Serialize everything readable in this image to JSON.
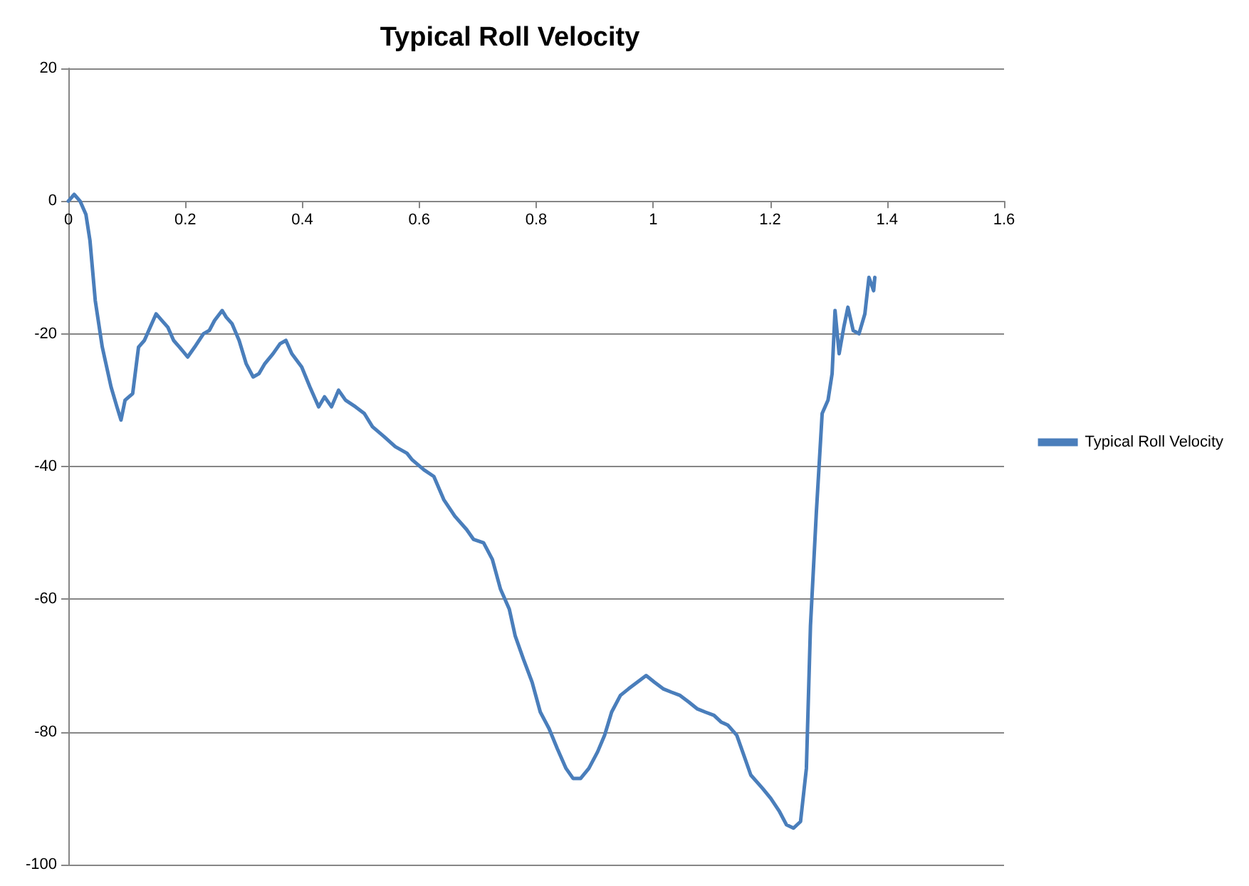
{
  "chart_data": {
    "type": "line",
    "title": "Typical Roll Velocity",
    "xlim": [
      0,
      1.6
    ],
    "xticks": [
      0,
      0.2,
      0.4,
      0.6,
      0.8,
      1,
      1.2,
      1.4,
      1.6
    ],
    "ylim": [
      -100,
      20
    ],
    "yticks": [
      -100,
      -80,
      -60,
      -40,
      -20,
      0,
      20
    ],
    "grid": "y",
    "legend": "right",
    "marker": "none",
    "line_style": "solid",
    "series": [
      {
        "name": "Typical Roll Velocity",
        "color": "#4a7ebb",
        "x": [
          0,
          0.01,
          0.02,
          0.03,
          0.037,
          0.046,
          0.058,
          0.073,
          0.083,
          0.09,
          0.097,
          0.11,
          0.12,
          0.13,
          0.14,
          0.15,
          0.16,
          0.17,
          0.18,
          0.19,
          0.204,
          0.216,
          0.231,
          0.241,
          0.25,
          0.263,
          0.27,
          0.28,
          0.292,
          0.304,
          0.316,
          0.326,
          0.336,
          0.35,
          0.362,
          0.372,
          0.382,
          0.399,
          0.413,
          0.428,
          0.438,
          0.45,
          0.462,
          0.474,
          0.491,
          0.506,
          0.52,
          0.54,
          0.559,
          0.579,
          0.588,
          0.608,
          0.625,
          0.642,
          0.661,
          0.681,
          0.693,
          0.71,
          0.725,
          0.739,
          0.754,
          0.764,
          0.778,
          0.793,
          0.807,
          0.822,
          0.836,
          0.851,
          0.863,
          0.876,
          0.89,
          0.905,
          0.917,
          0.929,
          0.944,
          0.958,
          0.973,
          0.988,
          1.002,
          1.017,
          1.031,
          1.046,
          1.061,
          1.075,
          1.089,
          1.104,
          1.116,
          1.128,
          1.143,
          1.153,
          1.167,
          1.187,
          1.201,
          1.216,
          1.228,
          1.24,
          1.252,
          1.262,
          1.269,
          1.279,
          1.289,
          1.299,
          1.306,
          1.311,
          1.318,
          1.326,
          1.333,
          1.342,
          1.352,
          1.362,
          1.369,
          1.377,
          1.379
        ],
        "values": [
          0,
          1,
          0,
          -2,
          -6,
          -15,
          -22,
          -28,
          -31,
          -33,
          -30,
          -29,
          -22,
          -21,
          -19,
          -17,
          -18,
          -19,
          -21,
          -22,
          -23.5,
          -22,
          -20,
          -19.5,
          -18,
          -16.5,
          -17.5,
          -18.5,
          -21,
          -24.5,
          -26.5,
          -26,
          -24.5,
          -23,
          -21.5,
          -21,
          -23,
          -25,
          -28,
          -31,
          -29.5,
          -31,
          -28.5,
          -30,
          -31,
          -32,
          -34,
          -35.5,
          -37,
          -38,
          -39,
          -40.5,
          -41.5,
          -45,
          -47.5,
          -49.5,
          -51,
          -51.5,
          -54,
          -58.5,
          -61.5,
          -65.5,
          -69,
          -72.5,
          -77,
          -79.5,
          -82.5,
          -85.5,
          -87,
          -87,
          -85.5,
          -83,
          -80.5,
          -77,
          -74.5,
          -73.5,
          -72.5,
          -71.5,
          -72.5,
          -73.5,
          -74,
          -74.5,
          -75.5,
          -76.5,
          -77,
          -77.5,
          -78.5,
          -79,
          -80.5,
          -83,
          -86.5,
          -88.5,
          -90,
          -92,
          -94,
          -94.5,
          -93.5,
          -85.5,
          -64,
          -47,
          -32,
          -30,
          -26,
          -16.5,
          -23,
          -19,
          -16,
          -19.5,
          -20,
          -17,
          -11.5,
          -13.5,
          -11.5
        ]
      }
    ]
  }
}
